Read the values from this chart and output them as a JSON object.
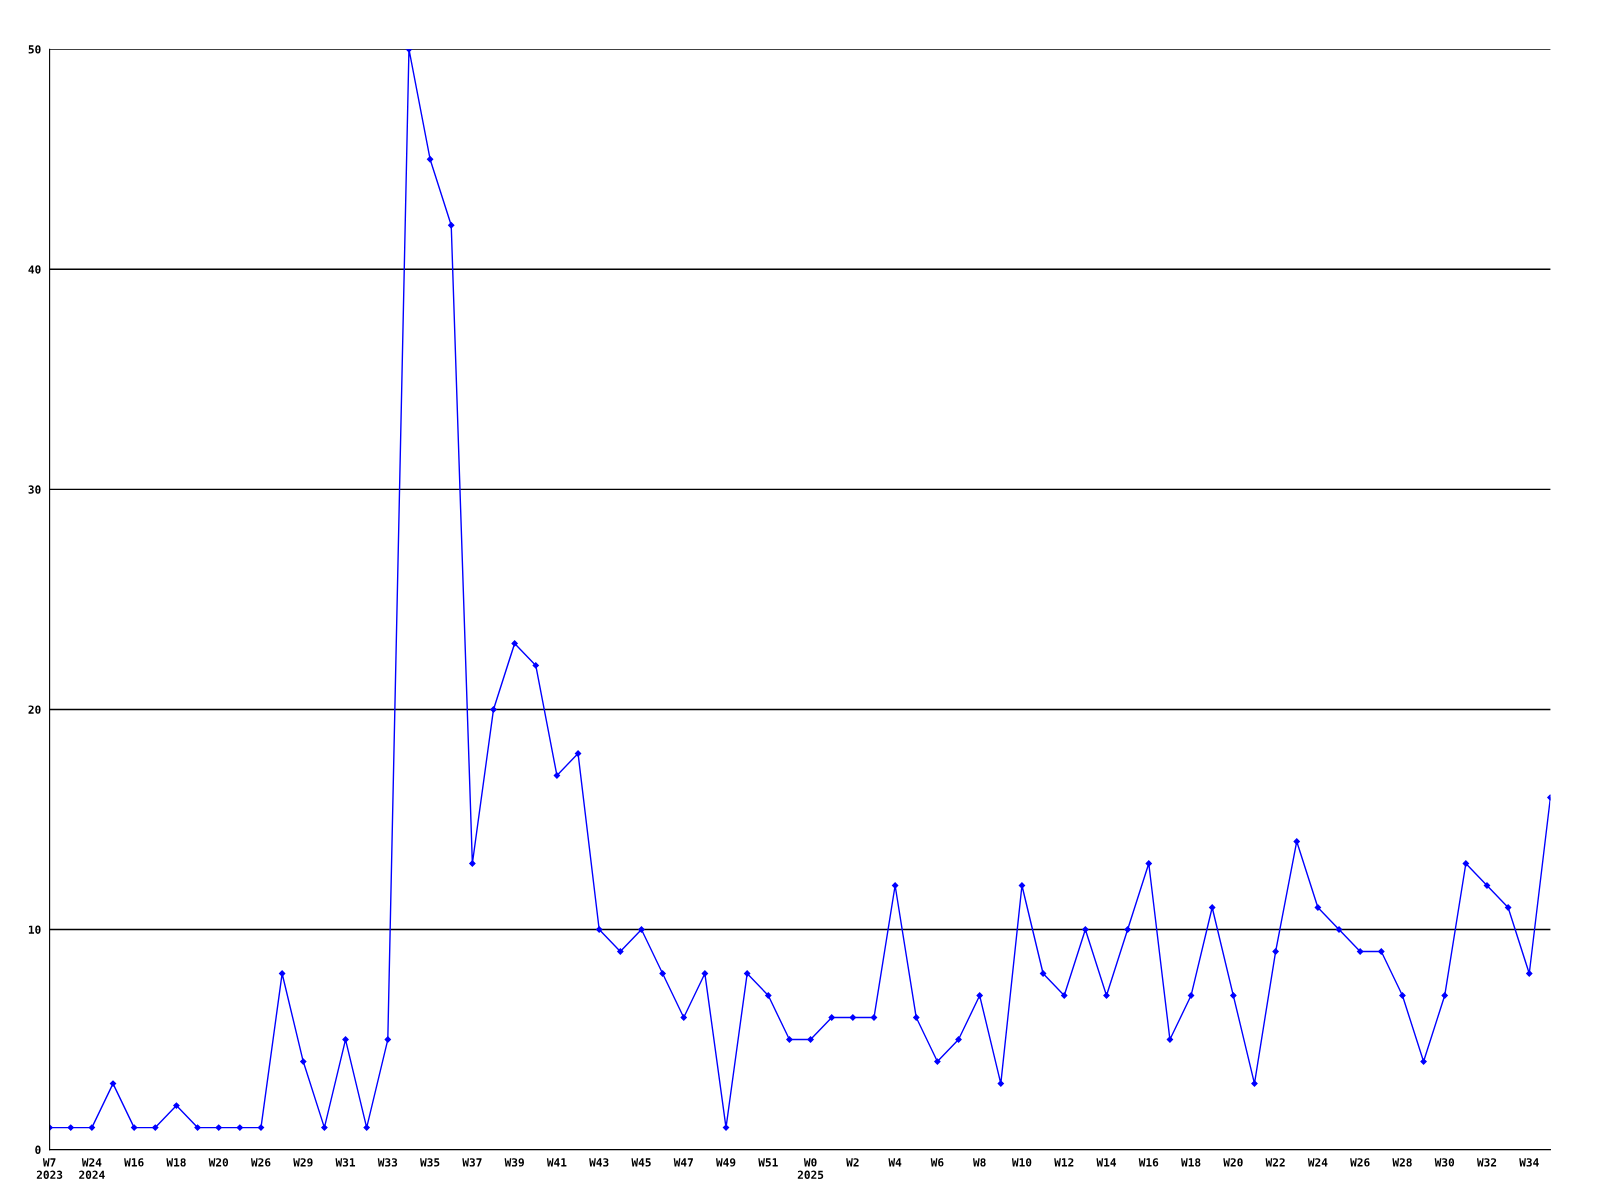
{
  "chart_data": {
    "type": "line",
    "categories": [
      "W7\n2023",
      null,
      "W24\n2024",
      null,
      "W16",
      null,
      "W18",
      null,
      "W20",
      null,
      "W26",
      null,
      "W29",
      null,
      "W31",
      null,
      "W33",
      null,
      "W35",
      null,
      "W37",
      null,
      "W39",
      null,
      "W41",
      null,
      "W43",
      null,
      "W45",
      null,
      "W47",
      null,
      "W49",
      null,
      "W51",
      null,
      "W0\n2025",
      null,
      "W2",
      null,
      "W4",
      null,
      "W6",
      null,
      "W8",
      null,
      "W10",
      null,
      "W12",
      null,
      "W14",
      null,
      "W16",
      null,
      "W18",
      null,
      "W20",
      null,
      "W22",
      null,
      "W24",
      null,
      "W26",
      null,
      "W28",
      null,
      "W30",
      null,
      "W32",
      null,
      "W34",
      null
    ],
    "series": [
      {
        "color": "#0000ff",
        "values": [
          1,
          1,
          1,
          3,
          1,
          1,
          2,
          1,
          1,
          1,
          1,
          8,
          4,
          1,
          5,
          1,
          5,
          50,
          45,
          42,
          13,
          20,
          23,
          22,
          17,
          18,
          10,
          9,
          10,
          8,
          6,
          8,
          1,
          8,
          7,
          5,
          5,
          6,
          6,
          6,
          12,
          6,
          4,
          5,
          7,
          3,
          12,
          8,
          7,
          10,
          7,
          10,
          13,
          5,
          7,
          11,
          7,
          3,
          9,
          14,
          11,
          10,
          9,
          9,
          7,
          4,
          7,
          13,
          12,
          11,
          8,
          16
        ]
      }
    ],
    "ylim": [
      0,
      50
    ],
    "yticks": [
      0,
      10,
      20,
      30,
      40,
      50
    ],
    "grid": "y",
    "marker": "diamond",
    "line_style": "solid",
    "legend": false
  }
}
